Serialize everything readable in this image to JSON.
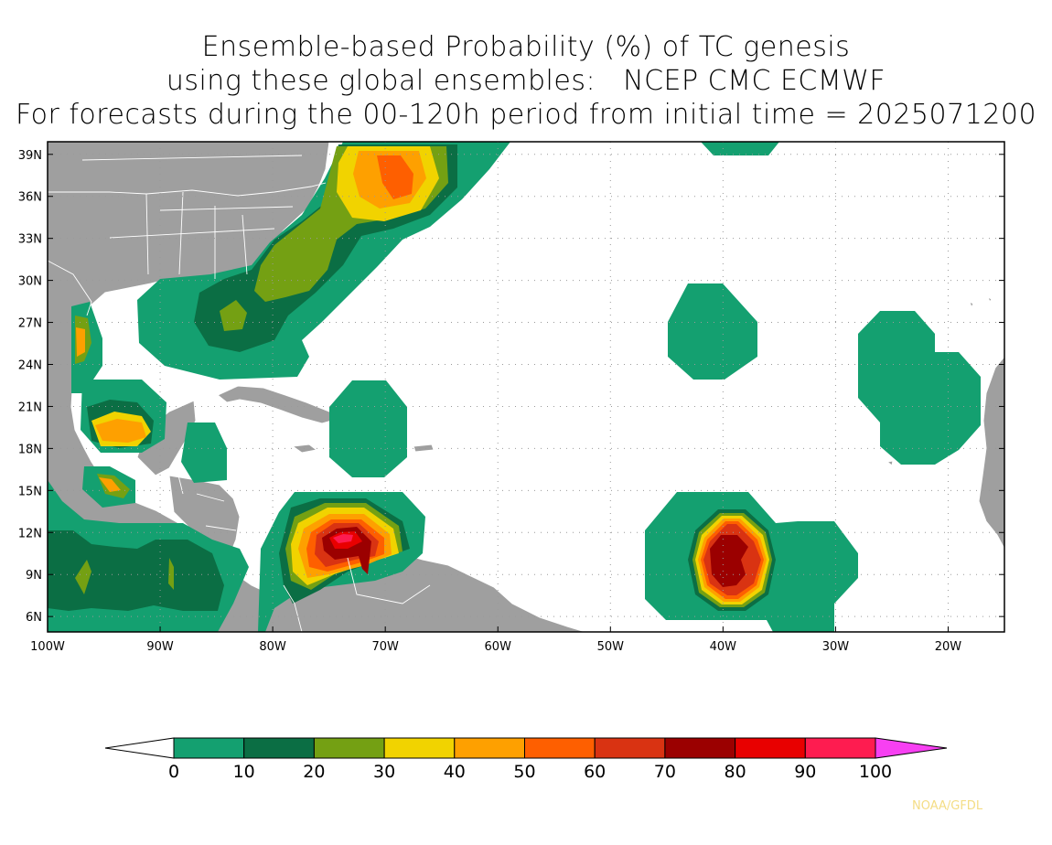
{
  "title": {
    "line1": "Ensemble-based Probability (%) of TC genesis",
    "line2": "using these global ensembles:   NCEP CMC ECMWF",
    "line3": "For forecasts during the 00-120h period from initial time = 2025071200"
  },
  "map": {
    "lat_labels": [
      "39N",
      "36N",
      "33N",
      "30N",
      "27N",
      "24N",
      "21N",
      "18N",
      "15N",
      "12N",
      "9N",
      "6N"
    ],
    "lon_labels": [
      "100W",
      "90W",
      "80W",
      "70W",
      "60W",
      "50W",
      "40W",
      "30W",
      "20W"
    ],
    "land_color": "#9f9f9f",
    "ocean_color": "#ffffff",
    "grid_style": "dotted"
  },
  "colorbar": {
    "labels": [
      "0",
      "10",
      "20",
      "30",
      "40",
      "50",
      "60",
      "70",
      "80",
      "90",
      "100"
    ],
    "colors": [
      "#14a070",
      "#0b6e44",
      "#74a013",
      "#f1d300",
      "#fea000",
      "#fe5f00",
      "#d93312",
      "#9b0000",
      "#e80000",
      "#fe1c50",
      "#f740f2"
    ],
    "under_color": "#ffffff"
  },
  "credit": "NOAA/GFDL"
}
